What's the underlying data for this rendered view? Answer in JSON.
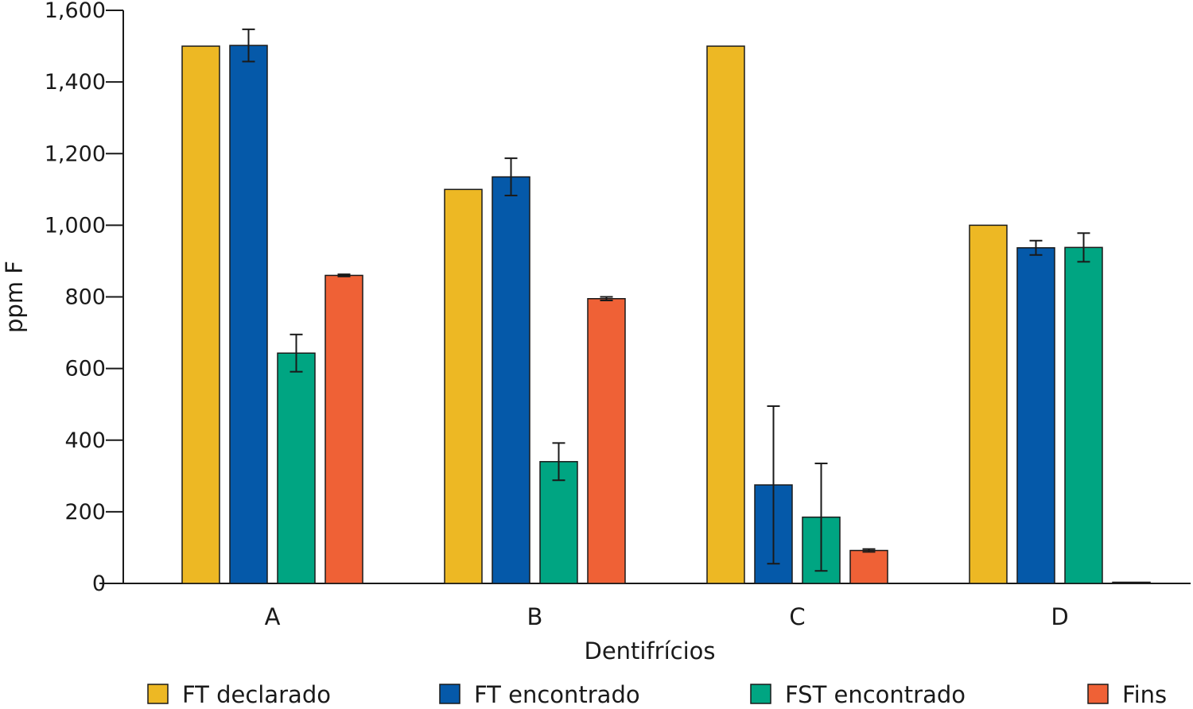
{
  "chart_data": {
    "type": "bar",
    "title": "",
    "xlabel": "Dentifrícios",
    "ylabel": "ppm F",
    "ylim": [
      0,
      1600
    ],
    "yticks": [
      0,
      200,
      400,
      600,
      800,
      1000,
      1200,
      1400,
      1600
    ],
    "ytick_labels": [
      "0",
      "200",
      "400",
      "600",
      "800",
      "1,000",
      "1,200",
      "1,400",
      "1,600"
    ],
    "categories": [
      "A",
      "B",
      "C",
      "D"
    ],
    "legend_position": "bottom",
    "grid": false,
    "series": [
      {
        "name": "FT declarado",
        "color": "#EDB824",
        "values": [
          1500,
          1100,
          1500,
          1000
        ],
        "errors": [
          null,
          null,
          null,
          null
        ]
      },
      {
        "name": "FT encontrado",
        "color": "#0559A9",
        "values": [
          1502,
          1135,
          275,
          937
        ],
        "errors": [
          45,
          52,
          220,
          20
        ]
      },
      {
        "name": "FST encontrado",
        "color": "#00A582",
        "values": [
          643,
          340,
          185,
          938
        ],
        "errors": [
          52,
          52,
          150,
          40
        ]
      },
      {
        "name": "Fins",
        "color": "#EF6136",
        "values": [
          860,
          795,
          92,
          0
        ],
        "errors": [
          3,
          5,
          4,
          0
        ]
      }
    ]
  }
}
